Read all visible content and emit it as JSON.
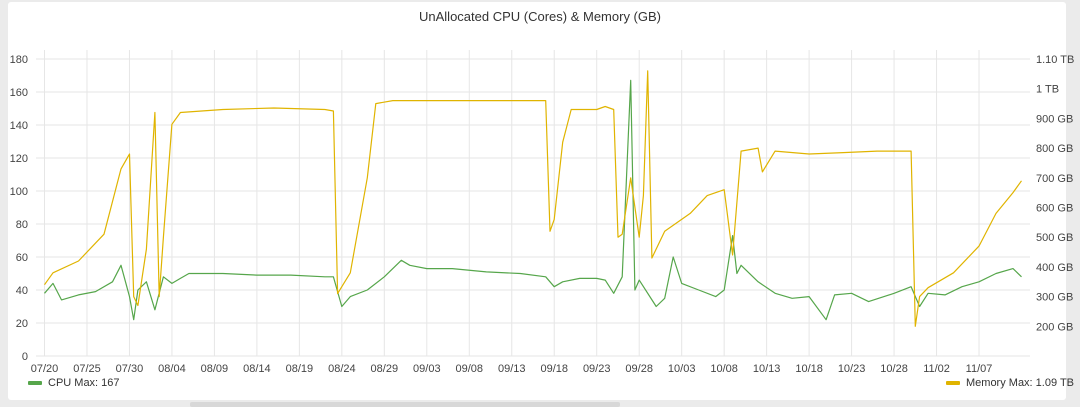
{
  "chart_data": {
    "type": "line",
    "title": "UnAllocated CPU (Cores) & Memory (GB)",
    "colors": {
      "cpu": "#56a64b",
      "memory": "#e0b400",
      "grid": "#e6e6e6"
    },
    "x_axis": {
      "type": "date",
      "range": [
        "2021-07-19",
        "2021-11-13"
      ],
      "tick_labels": [
        "07/20",
        "07/25",
        "07/30",
        "08/04",
        "08/09",
        "08/14",
        "08/19",
        "08/24",
        "08/29",
        "09/03",
        "09/08",
        "09/13",
        "09/18",
        "09/23",
        "09/28",
        "10/03",
        "10/08",
        "10/13",
        "10/18",
        "10/23",
        "10/28",
        "11/02",
        "11/07"
      ]
    },
    "y_left": {
      "ylim": [
        0,
        180
      ],
      "tick_labels": [
        "0",
        "20",
        "40",
        "60",
        "80",
        "100",
        "120",
        "140",
        "160",
        "180"
      ]
    },
    "y_right": {
      "ylim": [
        100,
        1100
      ],
      "tick_labels": [
        "200 GB",
        "300 GB",
        "400 GB",
        "500 GB",
        "600 GB",
        "700 GB",
        "800 GB",
        "900 GB",
        "1 TB",
        "1.10 TB"
      ]
    },
    "series": [
      {
        "name": "CPU",
        "axis": "left",
        "legend": "CPU  Max: 167",
        "points": [
          [
            "2021-07-20",
            38
          ],
          [
            "2021-07-21",
            44
          ],
          [
            "2021-07-22",
            34
          ],
          [
            "2021-07-24",
            37
          ],
          [
            "2021-07-26",
            39
          ],
          [
            "2021-07-28",
            45
          ],
          [
            "2021-07-29",
            55
          ],
          [
            "2021-07-30",
            36
          ],
          [
            "2021-07-30T12:00",
            22
          ],
          [
            "2021-07-31",
            40
          ],
          [
            "2021-08-01",
            45
          ],
          [
            "2021-08-02",
            28
          ],
          [
            "2021-08-03",
            48
          ],
          [
            "2021-08-04",
            44
          ],
          [
            "2021-08-05",
            47
          ],
          [
            "2021-08-06",
            50
          ],
          [
            "2021-08-10",
            50
          ],
          [
            "2021-08-14",
            49
          ],
          [
            "2021-08-18",
            49
          ],
          [
            "2021-08-22",
            48
          ],
          [
            "2021-08-23",
            48
          ],
          [
            "2021-08-24",
            30
          ],
          [
            "2021-08-25",
            36
          ],
          [
            "2021-08-27",
            40
          ],
          [
            "2021-08-29",
            48
          ],
          [
            "2021-08-31",
            58
          ],
          [
            "2021-09-01",
            55
          ],
          [
            "2021-09-03",
            53
          ],
          [
            "2021-09-06",
            53
          ],
          [
            "2021-09-10",
            51
          ],
          [
            "2021-09-14",
            50
          ],
          [
            "2021-09-17",
            48
          ],
          [
            "2021-09-18",
            42
          ],
          [
            "2021-09-19",
            45
          ],
          [
            "2021-09-21",
            47
          ],
          [
            "2021-09-23",
            47
          ],
          [
            "2021-09-24",
            46
          ],
          [
            "2021-09-25",
            38
          ],
          [
            "2021-09-26",
            48
          ],
          [
            "2021-09-27",
            167
          ],
          [
            "2021-09-27T12:00",
            40
          ],
          [
            "2021-09-28",
            46
          ],
          [
            "2021-09-30",
            30
          ],
          [
            "2021-10-01",
            35
          ],
          [
            "2021-10-02",
            60
          ],
          [
            "2021-10-03",
            44
          ],
          [
            "2021-10-05",
            40
          ],
          [
            "2021-10-07",
            36
          ],
          [
            "2021-10-08",
            40
          ],
          [
            "2021-10-09",
            73
          ],
          [
            "2021-10-09T12:00",
            50
          ],
          [
            "2021-10-10",
            55
          ],
          [
            "2021-10-12",
            45
          ],
          [
            "2021-10-14",
            38
          ],
          [
            "2021-10-16",
            35
          ],
          [
            "2021-10-18",
            36
          ],
          [
            "2021-10-20",
            22
          ],
          [
            "2021-10-21",
            37
          ],
          [
            "2021-10-23",
            38
          ],
          [
            "2021-10-25",
            33
          ],
          [
            "2021-10-28",
            38
          ],
          [
            "2021-10-30",
            42
          ],
          [
            "2021-10-31",
            30
          ],
          [
            "2021-11-01",
            38
          ],
          [
            "2021-11-03",
            37
          ],
          [
            "2021-11-05",
            42
          ],
          [
            "2021-11-07",
            45
          ],
          [
            "2021-11-09",
            50
          ],
          [
            "2021-11-11",
            53
          ],
          [
            "2021-11-12",
            48
          ]
        ]
      },
      {
        "name": "Memory",
        "axis": "right",
        "legend": "Memory  Max: 1.09 TB",
        "points": [
          [
            "2021-07-20",
            340
          ],
          [
            "2021-07-21",
            380
          ],
          [
            "2021-07-24",
            420
          ],
          [
            "2021-07-27",
            510
          ],
          [
            "2021-07-29",
            730
          ],
          [
            "2021-07-30",
            780
          ],
          [
            "2021-07-30T12:00",
            300
          ],
          [
            "2021-07-31",
            270
          ],
          [
            "2021-08-01",
            460
          ],
          [
            "2021-08-02",
            920
          ],
          [
            "2021-08-02T12:00",
            300
          ],
          [
            "2021-08-03",
            500
          ],
          [
            "2021-08-04",
            880
          ],
          [
            "2021-08-05",
            920
          ],
          [
            "2021-08-10",
            930
          ],
          [
            "2021-08-16",
            935
          ],
          [
            "2021-08-22",
            930
          ],
          [
            "2021-08-23",
            925
          ],
          [
            "2021-08-23T12:00",
            310
          ],
          [
            "2021-08-25",
            380
          ],
          [
            "2021-08-27",
            700
          ],
          [
            "2021-08-28",
            950
          ],
          [
            "2021-08-30",
            960
          ],
          [
            "2021-09-06",
            960
          ],
          [
            "2021-09-13",
            960
          ],
          [
            "2021-09-17",
            960
          ],
          [
            "2021-09-17T12:00",
            520
          ],
          [
            "2021-09-18",
            560
          ],
          [
            "2021-09-19",
            820
          ],
          [
            "2021-09-20",
            930
          ],
          [
            "2021-09-23",
            930
          ],
          [
            "2021-09-24",
            940
          ],
          [
            "2021-09-25",
            930
          ],
          [
            "2021-09-25T12:00",
            500
          ],
          [
            "2021-09-26",
            510
          ],
          [
            "2021-09-27",
            700
          ],
          [
            "2021-09-28",
            500
          ],
          [
            "2021-09-28T12:00",
            640
          ],
          [
            "2021-09-29",
            1060
          ],
          [
            "2021-09-29T12:00",
            430
          ],
          [
            "2021-10-01",
            520
          ],
          [
            "2021-10-04",
            580
          ],
          [
            "2021-10-06",
            640
          ],
          [
            "2021-10-08",
            660
          ],
          [
            "2021-10-09",
            440
          ],
          [
            "2021-10-10",
            790
          ],
          [
            "2021-10-12",
            800
          ],
          [
            "2021-10-12T12:00",
            720
          ],
          [
            "2021-10-14",
            790
          ],
          [
            "2021-10-18",
            780
          ],
          [
            "2021-10-22",
            785
          ],
          [
            "2021-10-26",
            790
          ],
          [
            "2021-10-30",
            790
          ],
          [
            "2021-10-30T12:00",
            200
          ],
          [
            "2021-10-31",
            300
          ],
          [
            "2021-11-01",
            330
          ],
          [
            "2021-11-04",
            380
          ],
          [
            "2021-11-07",
            470
          ],
          [
            "2021-11-09",
            580
          ],
          [
            "2021-11-11",
            650
          ],
          [
            "2021-11-12",
            690
          ]
        ]
      }
    ]
  }
}
